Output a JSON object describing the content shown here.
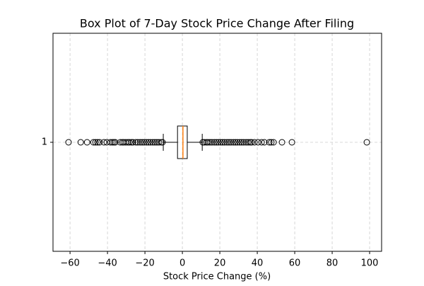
{
  "chart_data": {
    "type": "box",
    "title": "Box Plot of 7-Day Stock Price Change After Filing",
    "xlabel": "Stock Price Change (%)",
    "categories": [
      "1"
    ],
    "boxes": [
      {
        "whislo": -10.2,
        "q1": -2.6,
        "median": 0.3,
        "q3": 2.6,
        "whishi": 10.6,
        "fliers": [
          -60.8,
          -54.3,
          -50.9,
          -47.5,
          -46.4,
          -45.3,
          -44.2,
          -41.9,
          -40.4,
          -38.5,
          -37.4,
          -36.6,
          -35.8,
          -33.2,
          -32.1,
          -31.3,
          -30.2,
          -29.1,
          -28.3,
          -27.2,
          -26.4,
          -24.9,
          -23.8,
          -22.6,
          -21.5,
          -20.4,
          -19.2,
          -18.1,
          -17.0,
          -15.8,
          -14.7,
          -13.6,
          -12.5,
          -11.3,
          -10.6,
          10.9,
          11.7,
          12.8,
          13.6,
          14.7,
          15.8,
          17.0,
          18.1,
          19.2,
          20.4,
          21.5,
          22.6,
          23.8,
          24.9,
          26.0,
          27.2,
          28.3,
          29.4,
          30.6,
          31.7,
          32.8,
          34.0,
          35.1,
          36.2,
          37.0,
          38.5,
          40.4,
          42.3,
          43.8,
          46.4,
          47.5,
          48.7,
          53.2,
          58.5,
          98.5
        ]
      }
    ],
    "box_color": "#000000",
    "median_color": "#ff7f0e",
    "xlim": [
      -69.1,
      106.4
    ],
    "xticks": [
      {
        "value": -60,
        "label": "−60"
      },
      {
        "value": -40,
        "label": "−40"
      },
      {
        "value": -20,
        "label": "−20"
      },
      0,
      20,
      40,
      60,
      80,
      100
    ],
    "grid": true
  }
}
